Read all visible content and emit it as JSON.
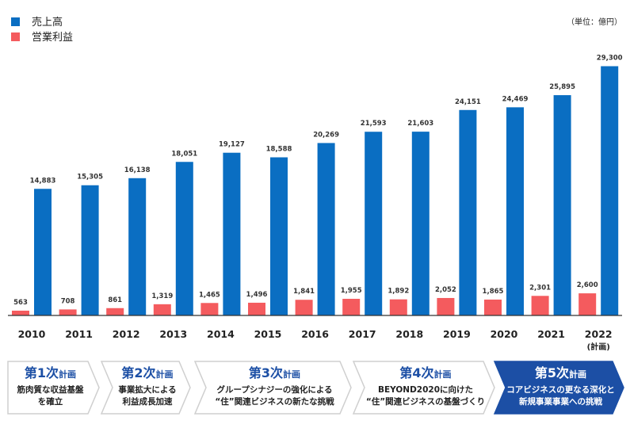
{
  "legend": {
    "sales_label": "売上高",
    "profit_label": "営業利益",
    "sales_color": "#0a6ec2",
    "profit_color": "#f45b5e"
  },
  "unit_label": "（単位：億円）",
  "chart_data": {
    "type": "bar",
    "categories": [
      "2010",
      "2011",
      "2012",
      "2013",
      "2014",
      "2015",
      "2016",
      "2017",
      "2018",
      "2019",
      "2020",
      "2021",
      "2022"
    ],
    "category_notes": [
      "",
      "",
      "",
      "",
      "",
      "",
      "",
      "",
      "",
      "",
      "",
      "",
      "(計画)"
    ],
    "series": [
      {
        "name": "営業利益",
        "color": "#f45b5e",
        "values": [
          563,
          708,
          861,
          1319,
          1465,
          1496,
          1841,
          1955,
          1892,
          2052,
          1865,
          2301,
          2600
        ],
        "labels": [
          "563",
          "708",
          "861",
          "1,319",
          "1,465",
          "1,496",
          "1,841",
          "1,955",
          "1,892",
          "2,052",
          "1,865",
          "2,301",
          "2,600"
        ]
      },
      {
        "name": "売上高",
        "color": "#0a6ec2",
        "values": [
          14883,
          15305,
          16138,
          18051,
          19127,
          18588,
          20269,
          21593,
          21603,
          24151,
          24469,
          25895,
          29300
        ],
        "labels": [
          "14,883",
          "15,305",
          "16,138",
          "18,051",
          "19,127",
          "18,588",
          "20,269",
          "21,593",
          "21,603",
          "24,151",
          "24,469",
          "25,895",
          "29,300"
        ]
      }
    ],
    "ylim": [
      0,
      30000
    ],
    "grid": false,
    "legend_position": "top-left"
  },
  "plans": [
    {
      "num": "第1次",
      "suffix": "計画",
      "lines": [
        "筋肉質な収益基盤",
        "を確立"
      ],
      "highlight": false
    },
    {
      "num": "第2次",
      "suffix": "計画",
      "lines": [
        "事業拡大による",
        "利益成長加速"
      ],
      "highlight": false
    },
    {
      "num": "第3次",
      "suffix": "計画",
      "lines": [
        "グループシナジーの強化による",
        "“住”関連ビジネスの新たな挑戦"
      ],
      "highlight": false
    },
    {
      "num": "第4次",
      "suffix": "計画",
      "lines": [
        "BEYOND2020に向けた",
        "“住”関連ビジネスの基盤づくり"
      ],
      "highlight": false
    },
    {
      "num": "第5次",
      "suffix": "計画",
      "lines": [
        "コアビジネスの更なる深化と",
        "新規事業事業への挑戦"
      ],
      "highlight": true
    }
  ]
}
